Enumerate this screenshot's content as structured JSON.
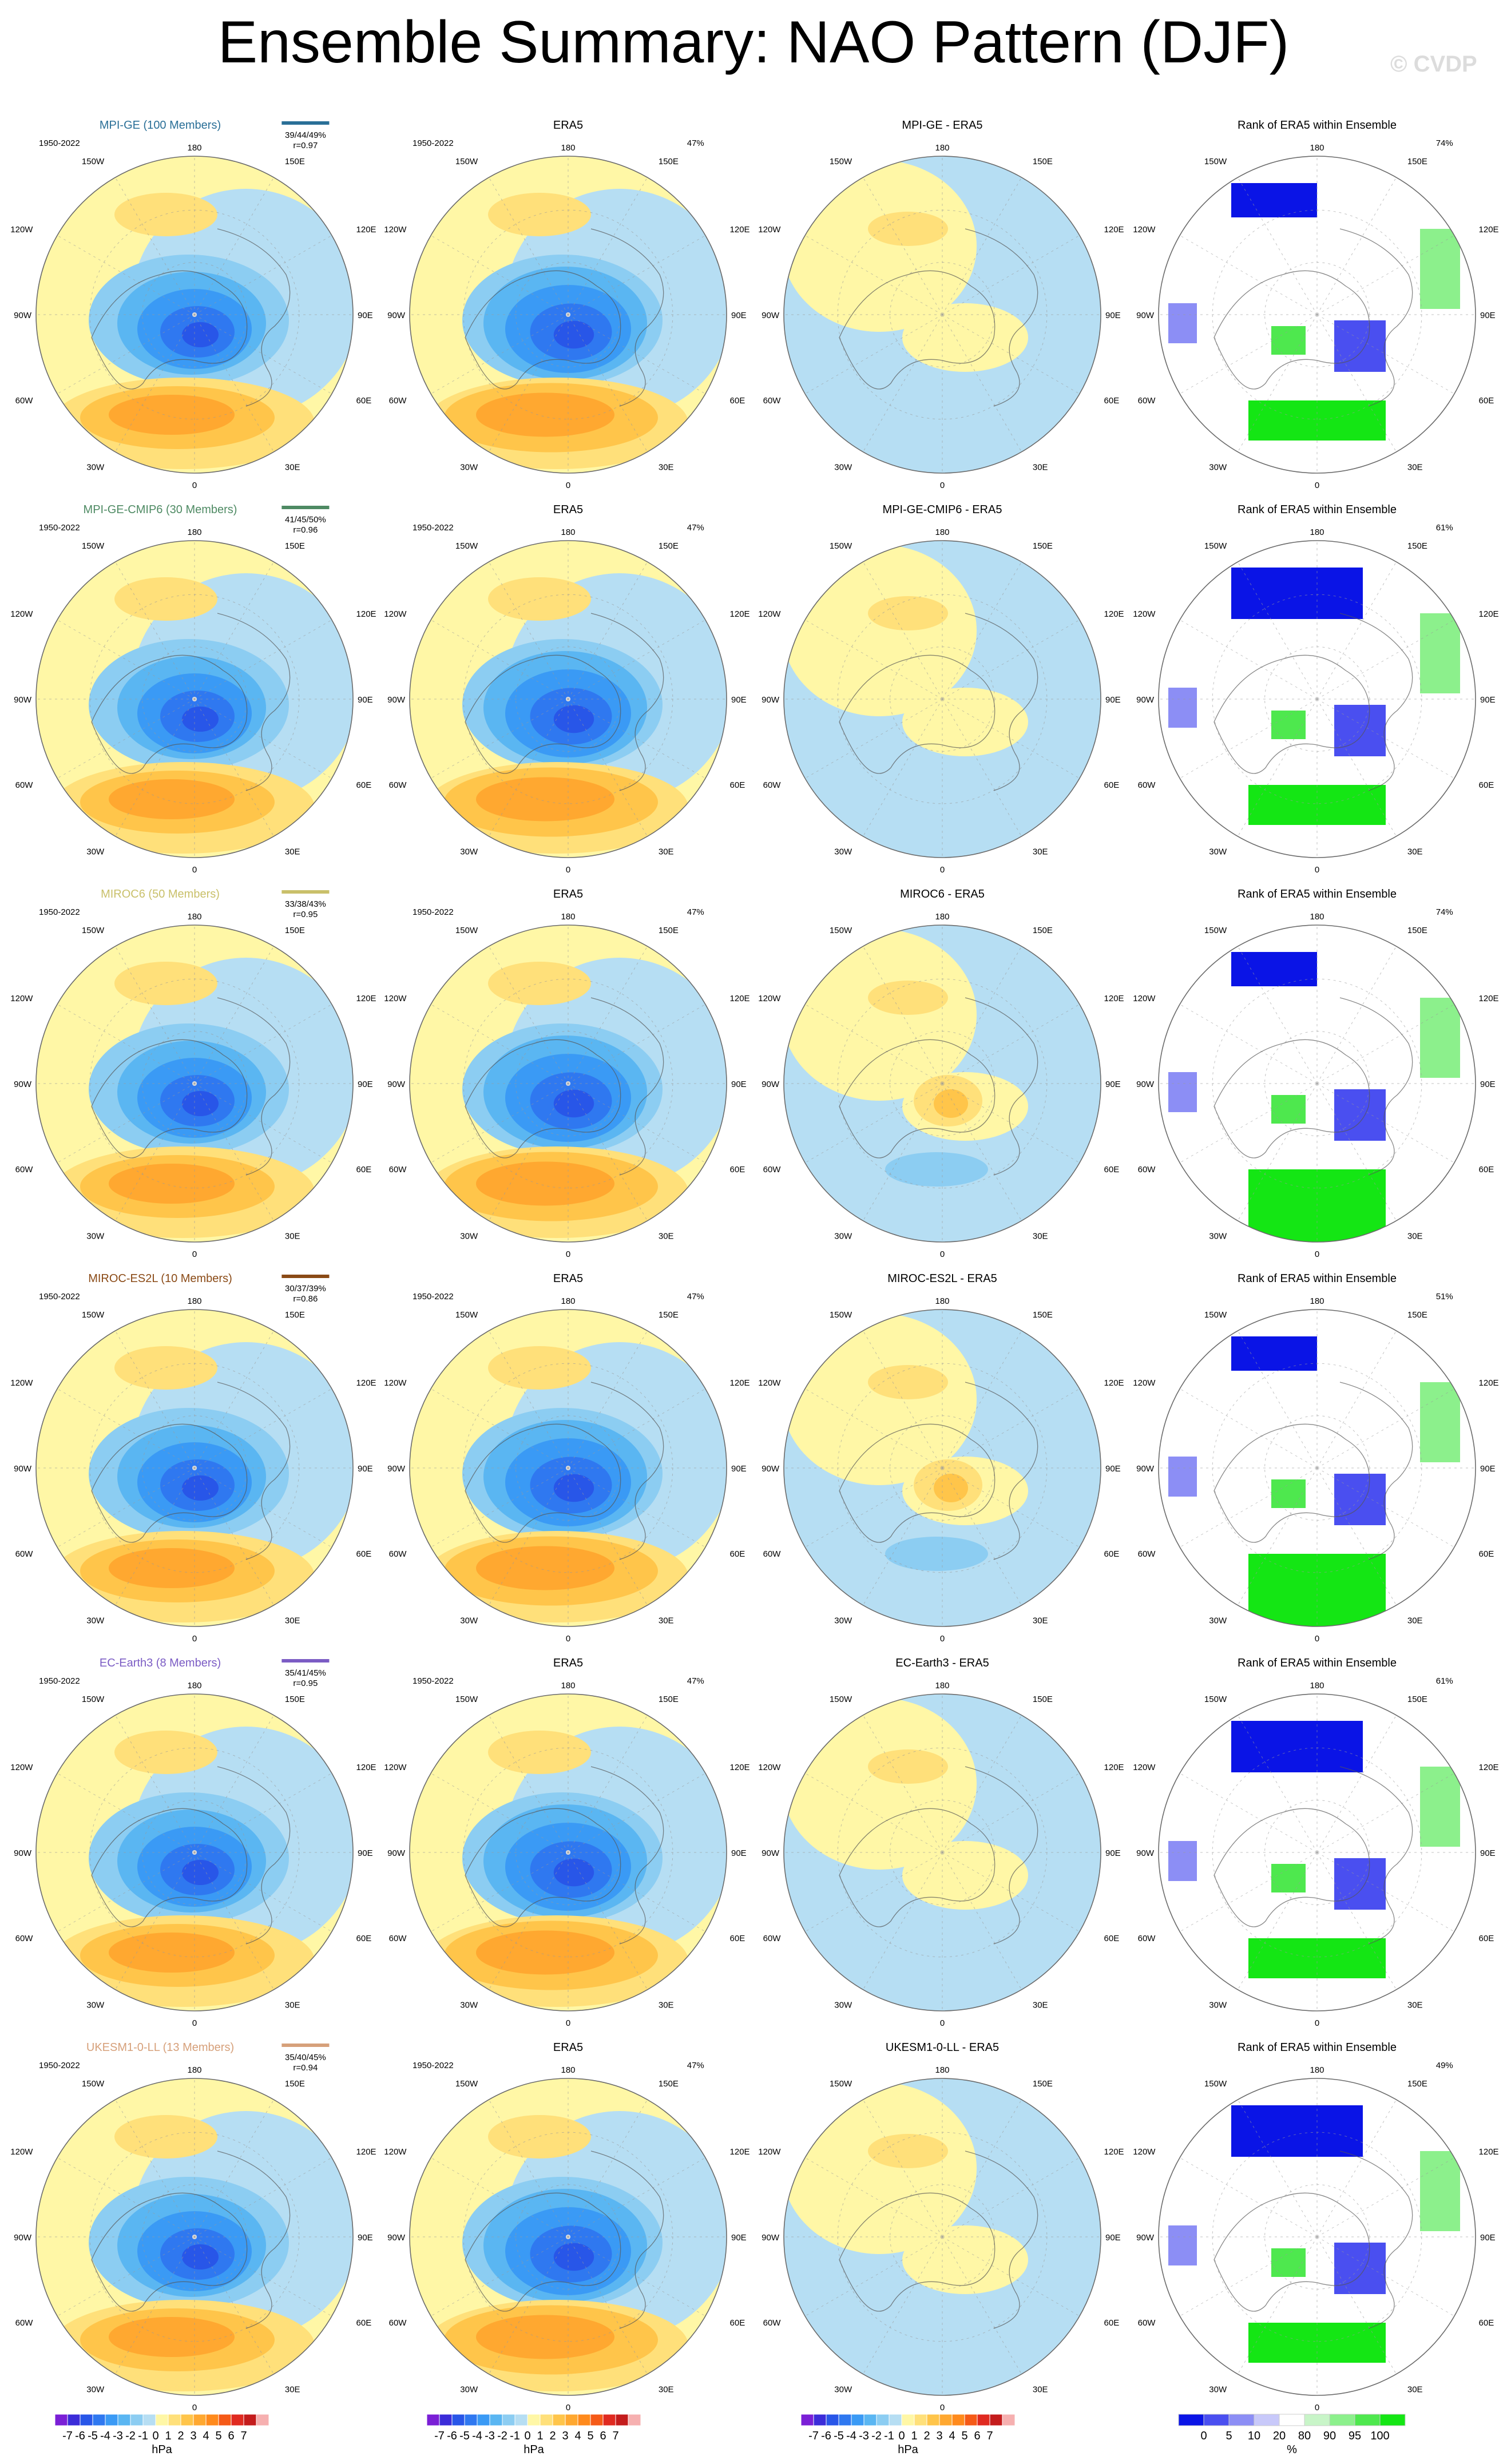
{
  "title": "Ensemble Summary: NAO Pattern (DJF)",
  "watermark": "© CVDP",
  "period": "1950-2022",
  "lon_labels": {
    "top": "180",
    "bottom": "0",
    "upper_left": "150W",
    "upper_right": "150E",
    "mid_upper_left": "120W",
    "mid_upper_right": "120E",
    "left": "90W",
    "right": "90E",
    "mid_lower_left": "60W",
    "mid_lower_right": "60E",
    "lower_left": "30W",
    "lower_right": "30E"
  },
  "column_titles": {
    "obs": "ERA5",
    "rank": "Rank of ERA5 within Ensemble"
  },
  "obs_pct": "47%",
  "rows": [
    {
      "model": "MPI-GE (100 Members)",
      "color": "#2a6f97",
      "stats": "39/44/49%",
      "r": "r=0.97",
      "diff_title": "MPI-GE - ERA5",
      "rank_pct": "74%"
    },
    {
      "model": "MPI-GE-CMIP6 (30 Members)",
      "color": "#4e8a63",
      "stats": "41/45/50%",
      "r": "r=0.96",
      "diff_title": "MPI-GE-CMIP6 - ERA5",
      "rank_pct": "61%"
    },
    {
      "model": "MIROC6 (50 Members)",
      "color": "#c9c06a",
      "stats": "33/38/43%",
      "r": "r=0.95",
      "diff_title": "MIROC6 - ERA5",
      "rank_pct": "74%"
    },
    {
      "model": "MIROC-ES2L (10 Members)",
      "color": "#8a4a16",
      "stats": "30/37/39%",
      "r": "r=0.86",
      "diff_title": "MIROC-ES2L - ERA5",
      "rank_pct": "51%"
    },
    {
      "model": "EC-Earth3 (8 Members)",
      "color": "#7b5cc4",
      "stats": "35/41/45%",
      "r": "r=0.95",
      "diff_title": "EC-Earth3 - ERA5",
      "rank_pct": "61%"
    },
    {
      "model": "UKESM1-0-LL (13 Members)",
      "color": "#d6a07a",
      "stats": "35/40/45%",
      "r": "r=0.94",
      "diff_title": "UKESM1-0-LL - ERA5",
      "rank_pct": "49%"
    }
  ],
  "colorbars": {
    "hpa": {
      "unit": "hPa",
      "labels": [
        "-7",
        "-6",
        "-5",
        "-4",
        "-3",
        "-2",
        "-1",
        "0",
        "1",
        "2",
        "3",
        "4",
        "5",
        "6",
        "7"
      ],
      "colors": [
        "#7a1fd6",
        "#3b2cd9",
        "#2856e8",
        "#2f78f0",
        "#3a9af5",
        "#5ab6f2",
        "#8ccdf2",
        "#b6def3",
        "#fff7a6",
        "#ffe07a",
        "#ffc54a",
        "#ffa830",
        "#ff8a1c",
        "#f55a17",
        "#e02a20",
        "#c41c1c",
        "#f6b0b0"
      ]
    },
    "rank": {
      "unit": "%",
      "labels": [
        "0",
        "5",
        "10",
        "20",
        "80",
        "90",
        "95",
        "100"
      ],
      "colors": [
        "#0a14e6",
        "#4a4ff0",
        "#8c8ef5",
        "#c8c9fa",
        "#ffffff",
        "#c8f5c8",
        "#8cf08c",
        "#4ee84e",
        "#14e614"
      ]
    }
  }
}
